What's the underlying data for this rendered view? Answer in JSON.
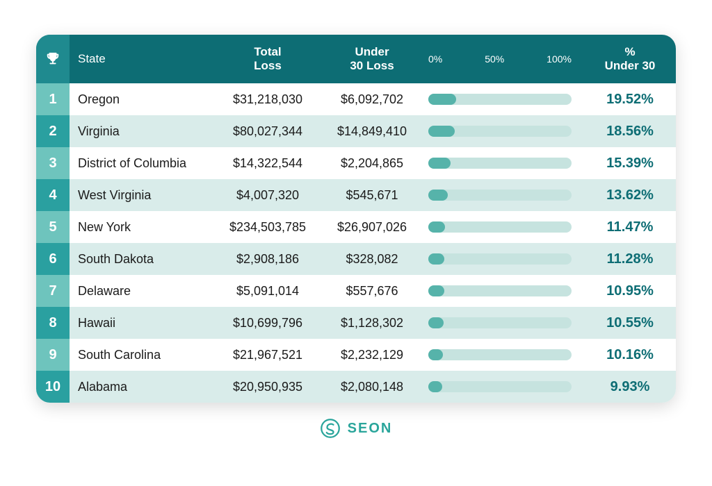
{
  "colors": {
    "header_bg": "#0d6d74",
    "header_rank_bg": "#1f8a8f",
    "rank_bg_dark": "#2aa0a0",
    "rank_bg_light": "#6ec4bd",
    "row_bg_light": "#ffffff",
    "row_bg_tint": "#d9ecea",
    "bar_track": "#c6e3df",
    "bar_fill": "#56b3aa",
    "pct_text": "#0d6d74",
    "body_text": "#222222",
    "logo": "#2aa59b"
  },
  "header": {
    "state": "State",
    "total_l1": "Total",
    "total_l2": "Loss",
    "under_l1": "Under",
    "under_l2": "30 Loss",
    "axis_0": "0%",
    "axis_50": "50%",
    "axis_100": "100%",
    "pct_l1": "%",
    "pct_l2": "Under 30"
  },
  "rows": [
    {
      "rank": "1",
      "state": "Oregon",
      "total": "$31,218,030",
      "under": "$6,092,702",
      "pct_num": 19.52,
      "pct": "19.52%"
    },
    {
      "rank": "2",
      "state": "Virginia",
      "total": "$80,027,344",
      "under": "$14,849,410",
      "pct_num": 18.56,
      "pct": "18.56%"
    },
    {
      "rank": "3",
      "state": "District of Columbia",
      "total": "$14,322,544",
      "under": "$2,204,865",
      "pct_num": 15.39,
      "pct": "15.39%"
    },
    {
      "rank": "4",
      "state": "West Virginia",
      "total": "$4,007,320",
      "under": "$545,671",
      "pct_num": 13.62,
      "pct": "13.62%"
    },
    {
      "rank": "5",
      "state": "New York",
      "total": "$234,503,785",
      "under": "$26,907,026",
      "pct_num": 11.47,
      "pct": "11.47%"
    },
    {
      "rank": "6",
      "state": "South Dakota",
      "total": "$2,908,186",
      "under": "$328,082",
      "pct_num": 11.28,
      "pct": "11.28%"
    },
    {
      "rank": "7",
      "state": "Delaware",
      "total": "$5,091,014",
      "under": "$557,676",
      "pct_num": 10.95,
      "pct": "10.95%"
    },
    {
      "rank": "8",
      "state": "Hawaii",
      "total": "$10,699,796",
      "under": "$1,128,302",
      "pct_num": 10.55,
      "pct": "10.55%"
    },
    {
      "rank": "9",
      "state": "South Carolina",
      "total": "$21,967,521",
      "under": "$2,232,129",
      "pct_num": 10.16,
      "pct": "10.16%"
    },
    {
      "rank": "10",
      "state": "Alabama",
      "total": "$20,950,935",
      "under": "$2,080,148",
      "pct_num": 9.93,
      "pct": "9.93%"
    }
  ],
  "logo": {
    "text": "SEON"
  }
}
